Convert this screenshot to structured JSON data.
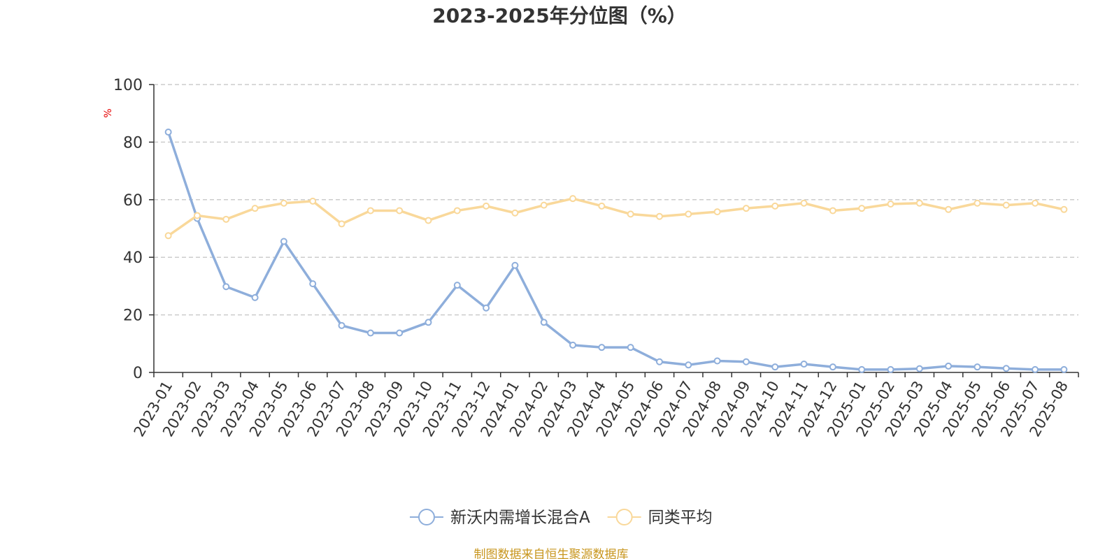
{
  "chart_data": {
    "type": "line",
    "title": "2023-2025年分位图（%）",
    "ylabel": "%",
    "ylim": [
      0,
      100
    ],
    "yticks": [
      0,
      20,
      40,
      60,
      80,
      100
    ],
    "grid": true,
    "legend_position": "bottom-center",
    "categories": [
      "2023-01",
      "2023-02",
      "2023-03",
      "2023-04",
      "2023-05",
      "2023-06",
      "2023-07",
      "2023-08",
      "2023-09",
      "2023-10",
      "2023-11",
      "2023-12",
      "2024-01",
      "2024-02",
      "2024-03",
      "2024-04",
      "2024-05",
      "2024-06",
      "2024-07",
      "2024-08",
      "2024-09",
      "2024-10",
      "2024-11",
      "2024-12",
      "2025-01",
      "2025-02",
      "2025-03",
      "2025-04",
      "2025-05",
      "2025-06",
      "2025-07",
      "2025-08"
    ],
    "series": [
      {
        "name": "新沃内需增长混合A",
        "color": "#8eaedb",
        "values": [
          83.5,
          53.5,
          29.8,
          26.0,
          45.5,
          30.8,
          16.3,
          13.7,
          13.7,
          17.4,
          30.3,
          22.4,
          37.2,
          17.4,
          9.5,
          8.7,
          8.7,
          3.7,
          2.6,
          4.0,
          3.7,
          1.9,
          2.9,
          1.9,
          1.0,
          1.0,
          1.3,
          2.2,
          1.9,
          1.4,
          1.0,
          1.0
        ]
      },
      {
        "name": "同类平均",
        "color": "#f9d89a",
        "values": [
          47.5,
          54.5,
          53.2,
          57.0,
          58.8,
          59.5,
          51.6,
          56.2,
          56.2,
          52.8,
          56.2,
          57.8,
          55.4,
          58.1,
          60.4,
          57.8,
          55.0,
          54.2,
          55.0,
          55.8,
          57.0,
          57.8,
          58.8,
          56.2,
          57.0,
          58.5,
          58.8,
          56.6,
          58.8,
          58.1,
          58.8,
          56.6
        ]
      }
    ]
  },
  "footer": {
    "source_text": "制图数据来自恒生聚源数据库"
  },
  "colors": {
    "axis": "#333333",
    "grid": "#cccccc",
    "ylabel": "#e60000",
    "source": "#c8961e",
    "title": "#333333"
  }
}
